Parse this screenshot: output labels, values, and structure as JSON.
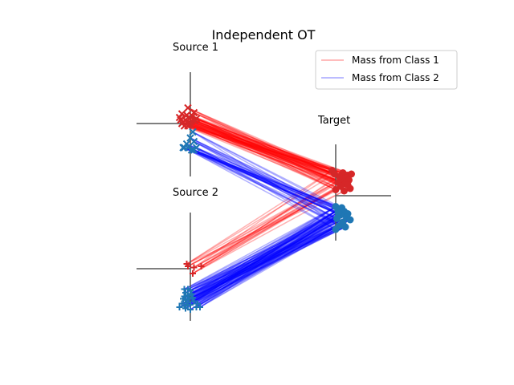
{
  "chart_data": {
    "type": "scatter",
    "title": "Independent OT",
    "panel_labels": {
      "source1": "Source 1",
      "source2": "Source 2",
      "target": "Target"
    },
    "legend": {
      "placement": "top-right",
      "entries": [
        {
          "label": "Mass from Class 1",
          "color": "#ff0000"
        },
        {
          "label": "Mass from Class 2",
          "color": "#0000ff"
        }
      ]
    },
    "colors": {
      "class1": "#ff0000",
      "class2": "#0000ff",
      "class1_marker": "#d62728",
      "class2_marker": "#1f77b4",
      "axis": "#555555"
    },
    "source1": {
      "marker": "x",
      "class1": [
        [
          -0.2,
          1.3
        ],
        [
          -0.9,
          0.5
        ],
        [
          -0.6,
          0.1
        ],
        [
          0.3,
          0.9
        ],
        [
          -0.3,
          0.7
        ],
        [
          0.2,
          0.6
        ],
        [
          -0.7,
          0.8
        ],
        [
          -0.1,
          0.4
        ],
        [
          0.5,
          0.4
        ],
        [
          -0.4,
          0.3
        ],
        [
          0.1,
          0.2
        ],
        [
          0.4,
          0.2
        ],
        [
          -0.8,
          0.3
        ],
        [
          -0.5,
          -0.2
        ],
        [
          -0.2,
          -0.2
        ],
        [
          0.0,
          0.0
        ],
        [
          -0.7,
          0.0
        ],
        [
          -0.1,
          -0.1
        ]
      ],
      "class2": [
        [
          0.2,
          -0.7
        ],
        [
          0.0,
          -1.2
        ],
        [
          0.3,
          -1.5
        ],
        [
          -0.3,
          -1.7
        ],
        [
          -0.5,
          -2.0
        ],
        [
          -0.6,
          -2.0
        ],
        [
          -0.2,
          -2.0
        ],
        [
          0.5,
          -2.0
        ],
        [
          0.1,
          -2.2
        ],
        [
          0.3,
          -2.2
        ]
      ]
    },
    "source2": {
      "marker": "+",
      "class1": [
        [
          -0.3,
          0.4
        ],
        [
          -0.2,
          0.2
        ],
        [
          0.3,
          0.1
        ],
        [
          0.9,
          0.2
        ],
        [
          0.2,
          -0.4
        ]
      ],
      "class2": [
        [
          -0.5,
          -1.7
        ],
        [
          -0.2,
          -1.7
        ],
        [
          0.0,
          -1.8
        ],
        [
          -0.4,
          -2.0
        ],
        [
          0.1,
          -2.1
        ],
        [
          -0.2,
          -2.2
        ],
        [
          -0.5,
          -2.3
        ],
        [
          0.2,
          -2.4
        ],
        [
          -0.1,
          -2.5
        ],
        [
          -0.4,
          -2.6
        ],
        [
          0.3,
          -2.7
        ],
        [
          -0.7,
          -2.9
        ],
        [
          -0.3,
          -2.8
        ],
        [
          0.0,
          -3.0
        ],
        [
          -0.5,
          -3.1
        ],
        [
          0.5,
          -3.2
        ],
        [
          -0.9,
          -3.2
        ],
        [
          -0.4,
          -3.3
        ],
        [
          0.0,
          -3.4
        ],
        [
          -0.2,
          -3.0
        ],
        [
          0.6,
          -2.9
        ],
        [
          0.8,
          -3.2
        ],
        [
          -0.6,
          -2.5
        ]
      ]
    },
    "target": {
      "marker": "o",
      "class1": [
        [
          -0.3,
          2.1
        ],
        [
          0.6,
          1.9
        ],
        [
          1.0,
          1.7
        ],
        [
          0.9,
          1.5
        ],
        [
          1.3,
          1.8
        ],
        [
          0.5,
          1.4
        ],
        [
          1.1,
          1.3
        ],
        [
          0.2,
          1.1
        ],
        [
          0.8,
          1.0
        ],
        [
          0.4,
          0.8
        ],
        [
          1.2,
          0.6
        ],
        [
          0.0,
          0.5
        ],
        [
          0.7,
          0.4
        ],
        [
          1.0,
          0.9
        ],
        [
          0.3,
          1.6
        ],
        [
          -0.1,
          1.8
        ]
      ],
      "class2": [
        [
          0.0,
          -0.9
        ],
        [
          0.5,
          -1.0
        ],
        [
          0.2,
          -1.2
        ],
        [
          0.7,
          -1.3
        ],
        [
          1.0,
          -1.5
        ],
        [
          0.4,
          -1.6
        ],
        [
          0.9,
          -1.8
        ],
        [
          0.1,
          -1.9
        ],
        [
          0.6,
          -2.2
        ],
        [
          1.2,
          -2.0
        ],
        [
          0.3,
          -2.5
        ],
        [
          0.8,
          -2.6
        ],
        [
          0.0,
          -2.8
        ],
        [
          0.2,
          -1.4
        ]
      ]
    }
  }
}
